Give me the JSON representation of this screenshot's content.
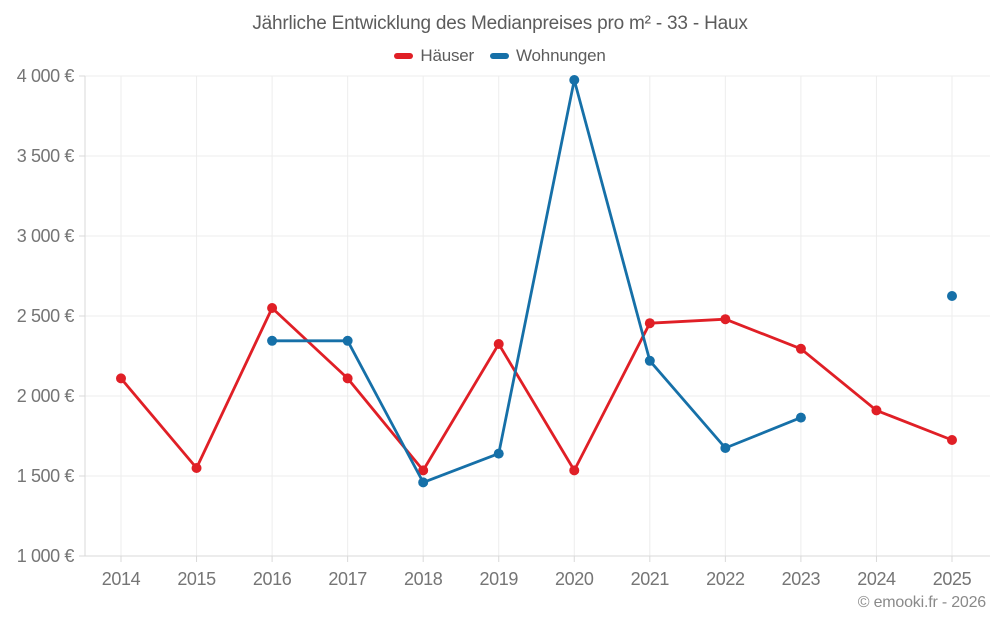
{
  "chart_data": {
    "type": "line",
    "title": "Jährliche Entwicklung des Medianpreises pro m² - 33 - Haux",
    "xlabel": "",
    "ylabel": "",
    "categories": [
      "2014",
      "2015",
      "2016",
      "2017",
      "2018",
      "2019",
      "2020",
      "2021",
      "2022",
      "2023",
      "2024",
      "2025"
    ],
    "series": [
      {
        "name": "Häuser",
        "color": "#e01f26",
        "values": [
          2110,
          1550,
          2550,
          2110,
          1535,
          2325,
          1535,
          2455,
          2480,
          2295,
          1910,
          1725
        ]
      },
      {
        "name": "Wohnungen",
        "color": "#1670a8",
        "values": [
          null,
          null,
          2345,
          2345,
          1460,
          1640,
          3975,
          2220,
          1675,
          1865,
          null,
          2625
        ]
      }
    ],
    "ylim": [
      1000,
      4000
    ],
    "yticks": {
      "values": [
        1000,
        1500,
        2000,
        2500,
        3000,
        3500,
        4000
      ],
      "labels": [
        "1 000 €",
        "1 500 €",
        "2 000 €",
        "2 500 €",
        "3 000 €",
        "3 500 €",
        "4 000 €"
      ]
    },
    "grid": true,
    "legend_position": "top",
    "colors": {
      "background": "#ffffff",
      "grid": "#ededed",
      "axis": "#d9d9d9",
      "tick_label": "#757575",
      "title_text": "#5c5c5c",
      "watermark_text": "#8a8a8a"
    }
  },
  "footer": {
    "watermark": "© emooki.fr - 2026"
  }
}
